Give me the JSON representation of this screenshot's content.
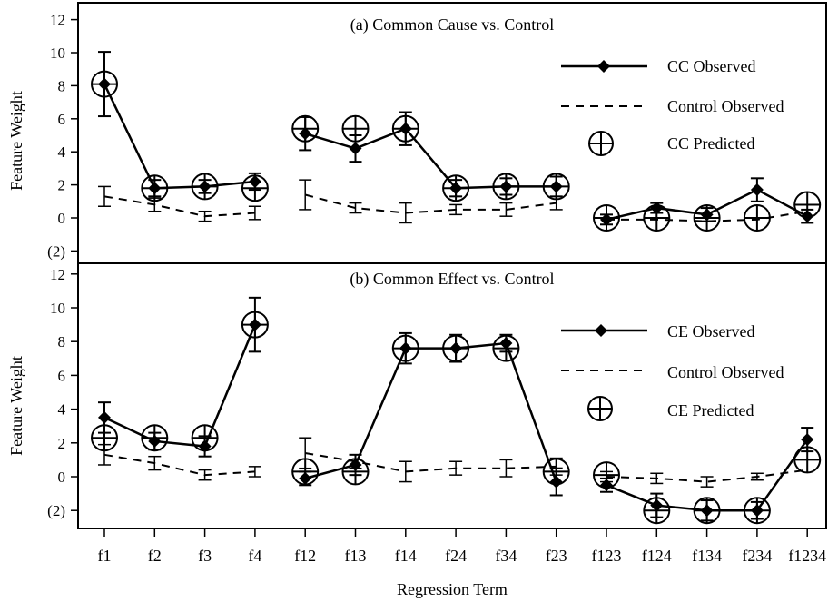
{
  "chart_data": [
    {
      "type": "line",
      "title": "(a) Common Cause vs. Control",
      "ylabel": "Feature Weight",
      "xlabel": "Regression Term",
      "ylim": [
        -2.5,
        12.5
      ],
      "yticks": [
        12,
        10,
        8,
        6,
        4,
        2,
        0,
        -2
      ],
      "ytick_labels": [
        "12",
        "10",
        "8",
        "6",
        "4",
        "2",
        "0",
        "(2)"
      ],
      "categories": [
        "f1",
        "f2",
        "f3",
        "f4",
        "f12",
        "f13",
        "f14",
        "f24",
        "f34",
        "f23",
        "f123",
        "f124",
        "f134",
        "f234",
        "f1234"
      ],
      "groups": [
        [
          0,
          3
        ],
        [
          4,
          9
        ],
        [
          10,
          14
        ]
      ],
      "legend": {
        "placement": "right",
        "entries": [
          "CC Observed",
          "Control Observed",
          "CC Predicted"
        ]
      },
      "series": [
        {
          "name": "CC Observed",
          "style": "solid-diamond",
          "values": [
            8.1,
            1.8,
            1.9,
            2.2,
            5.1,
            4.2,
            5.4,
            1.8,
            1.9,
            1.9,
            -0.1,
            0.6,
            0.2,
            1.7,
            0.1
          ],
          "errors": [
            1.95,
            0.5,
            0.4,
            0.5,
            1.0,
            0.8,
            1.0,
            0.5,
            0.5,
            0.6,
            0.3,
            0.3,
            0.4,
            0.7,
            0.4
          ]
        },
        {
          "name": "Control Observed",
          "style": "dashed",
          "values": [
            1.3,
            0.8,
            0.1,
            0.3,
            1.4,
            0.6,
            0.3,
            0.5,
            0.5,
            0.9,
            null,
            null,
            null,
            null,
            null
          ],
          "errors": [
            0.6,
            0.4,
            0.3,
            0.4,
            0.9,
            0.3,
            0.6,
            0.3,
            0.4,
            0.4,
            null,
            null,
            null,
            null,
            null
          ],
          "values_trend": [
            null,
            null,
            null,
            null,
            null,
            null,
            null,
            null,
            null,
            null,
            -0.1,
            -0.1,
            -0.2,
            -0.1,
            0.4
          ]
        },
        {
          "name": "CC Predicted",
          "style": "circle-plus",
          "values": [
            8.1,
            1.8,
            1.9,
            1.8,
            5.4,
            5.4,
            5.4,
            1.8,
            1.9,
            1.9,
            0.0,
            0.0,
            0.0,
            0.0,
            0.8
          ]
        }
      ]
    },
    {
      "type": "line",
      "title": "(b) Common Effect vs. Control",
      "ylabel": "Feature Weight",
      "xlabel": "Regression Term",
      "ylim": [
        -2.5,
        12.5
      ],
      "yticks": [
        12,
        10,
        8,
        6,
        4,
        2,
        0,
        -2
      ],
      "ytick_labels": [
        "12",
        "10",
        "8",
        "6",
        "4",
        "2",
        "0",
        "(2)"
      ],
      "categories": [
        "f1",
        "f2",
        "f3",
        "f4",
        "f12",
        "f13",
        "f14",
        "f24",
        "f34",
        "f23",
        "f123",
        "f124",
        "f134",
        "f234",
        "f1234"
      ],
      "groups": [
        [
          0,
          3
        ],
        [
          4,
          9
        ],
        [
          10,
          14
        ]
      ],
      "legend": {
        "placement": "right",
        "entries": [
          "CE Observed",
          "Control Observed",
          "CE Predicted"
        ]
      },
      "series": [
        {
          "name": "CE Observed",
          "style": "solid-diamond",
          "values": [
            3.5,
            2.1,
            1.8,
            9.0,
            -0.1,
            0.7,
            7.6,
            7.6,
            7.9,
            -0.3,
            -0.5,
            -1.7,
            -2.0,
            -2.0,
            2.2
          ],
          "errors": [
            0.9,
            0.5,
            0.6,
            1.6,
            0.4,
            0.6,
            0.9,
            0.8,
            0.5,
            0.8,
            0.4,
            0.7,
            0.6,
            0.5,
            0.7
          ]
        },
        {
          "name": "Control Observed",
          "style": "dashed",
          "values": [
            1.3,
            0.8,
            0.1,
            0.3,
            1.4,
            0.9,
            0.3,
            0.5,
            0.5,
            0.6,
            0.0,
            -0.1,
            -0.3,
            0.0,
            null
          ],
          "errors": [
            0.6,
            0.4,
            0.3,
            0.3,
            0.9,
            0.4,
            0.6,
            0.4,
            0.5,
            0.5,
            0.3,
            0.3,
            0.3,
            0.2,
            null
          ],
          "values_trend": [
            null,
            null,
            null,
            null,
            null,
            null,
            null,
            null,
            null,
            null,
            null,
            null,
            null,
            0.0,
            0.4
          ]
        },
        {
          "name": "CE Predicted",
          "style": "circle-plus",
          "values": [
            2.3,
            2.3,
            2.3,
            9.0,
            0.3,
            0.3,
            7.6,
            7.6,
            7.6,
            0.3,
            0.1,
            -2.0,
            -2.0,
            -2.0,
            1.0
          ]
        }
      ]
    }
  ]
}
